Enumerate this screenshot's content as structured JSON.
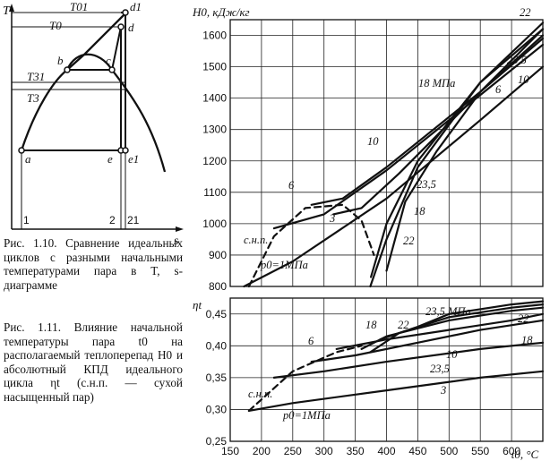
{
  "captions": {
    "fig110": "Рис. 1.10. Сравнение идеальных циклов с разными начальными температурами пара в T, s-диаграмме",
    "fig111": "Рис. 1.11. Влияние начальной температуры пара t0 на располагаемый теплоперепад H0 и абсолютный КПД идеального цикла ηt (с.н.п. — сухой насыщенный пар)"
  },
  "ts_diagram": {
    "axis_t": "T",
    "axis_s": "s",
    "labels": {
      "T01": "T01",
      "T0": "T0",
      "T31": "T31",
      "T3": "T3",
      "d1": "d1",
      "d": "d",
      "b": "b",
      "c": "c",
      "a": "a",
      "e": "e",
      "e1": "e1",
      "p1": "1",
      "p2": "2",
      "p21": "21"
    }
  },
  "chart_data": [
    {
      "type": "line",
      "xlim": [
        150,
        650
      ],
      "ylim": [
        800,
        1650
      ],
      "ylabel": "H0, кДж/кг",
      "yticks": [
        800,
        900,
        1000,
        1100,
        1200,
        1300,
        1400,
        1500,
        1600
      ],
      "annotations": [
        "22",
        "23,5",
        "10",
        "6",
        "18 МПа",
        "10",
        "6",
        "3",
        "18",
        "22",
        "23,5",
        "с.н.п.",
        "p0=1МПа"
      ],
      "series": [
        {
          "name": "1 МПа",
          "x": [
            172,
            250,
            400,
            550,
            650
          ],
          "y": [
            800,
            880,
            1080,
            1330,
            1500
          ]
        },
        {
          "name": "3",
          "x": [
            220,
            300,
            400,
            550,
            650
          ],
          "y": [
            985,
            1030,
            1170,
            1410,
            1570
          ]
        },
        {
          "name": "6",
          "x": [
            280,
            330,
            400,
            550,
            650
          ],
          "y": [
            1060,
            1080,
            1180,
            1420,
            1590
          ]
        },
        {
          "name": "10",
          "x": [
            315,
            360,
            420,
            550,
            650
          ],
          "y": [
            1030,
            1050,
            1160,
            1420,
            1600
          ]
        },
        {
          "name": "18",
          "x": [
            375,
            400,
            450,
            550,
            650
          ],
          "y": [
            830,
            1000,
            1200,
            1450,
            1620
          ]
        },
        {
          "name": "22",
          "x": [
            374,
            400,
            450,
            550,
            650
          ],
          "y": [
            800,
            950,
            1180,
            1450,
            1640
          ]
        },
        {
          "name": "23,5",
          "x": [
            400,
            430,
            480,
            550,
            650
          ],
          "y": [
            850,
            1070,
            1230,
            1420,
            1620
          ]
        },
        {
          "name": "с.н.п.",
          "x": [
            180,
            220,
            270,
            330,
            360,
            380
          ],
          "y": [
            800,
            960,
            1050,
            1060,
            1010,
            900
          ]
        }
      ]
    },
    {
      "type": "line",
      "xlim": [
        150,
        650
      ],
      "ylim": [
        0.25,
        0.475
      ],
      "ylabel": "ηt",
      "xlabel": "t0, °C",
      "xticks": [
        150,
        200,
        250,
        300,
        350,
        400,
        450,
        500,
        550,
        600
      ],
      "yticks": [
        "0,25",
        "0,30",
        "0,35",
        "0,40",
        "0,45"
      ],
      "annotations": [
        "23,5 МПа",
        "22",
        "18",
        "6",
        "10",
        "3",
        "23,5",
        "18",
        "22",
        "с.н.п.",
        "p0=1МПа"
      ],
      "series": [
        {
          "name": "1 МПа",
          "x": [
            180,
            250,
            400,
            550,
            650
          ],
          "y": [
            0.298,
            0.31,
            0.33,
            0.35,
            0.36
          ]
        },
        {
          "name": "3",
          "x": [
            220,
            300,
            400,
            550,
            650
          ],
          "y": [
            0.35,
            0.36,
            0.375,
            0.395,
            0.405
          ]
        },
        {
          "name": "6",
          "x": [
            280,
            350,
            450,
            550,
            650
          ],
          "y": [
            0.375,
            0.385,
            0.405,
            0.425,
            0.44
          ]
        },
        {
          "name": "10",
          "x": [
            320,
            400,
            500,
            600,
            650
          ],
          "y": [
            0.395,
            0.41,
            0.425,
            0.44,
            0.45
          ]
        },
        {
          "name": "18",
          "x": [
            360,
            400,
            500,
            600,
            650
          ],
          "y": [
            0.395,
            0.415,
            0.44,
            0.455,
            0.46
          ]
        },
        {
          "name": "22",
          "x": [
            374,
            420,
            500,
            600,
            650
          ],
          "y": [
            0.39,
            0.42,
            0.445,
            0.46,
            0.465
          ]
        },
        {
          "name": "23,5",
          "x": [
            390,
            450,
            500,
            600,
            650
          ],
          "y": [
            0.41,
            0.43,
            0.45,
            0.465,
            0.47
          ]
        },
        {
          "name": "с.н.п.",
          "x": [
            180,
            250,
            320,
            360
          ],
          "y": [
            0.298,
            0.36,
            0.39,
            0.4
          ]
        }
      ]
    }
  ]
}
